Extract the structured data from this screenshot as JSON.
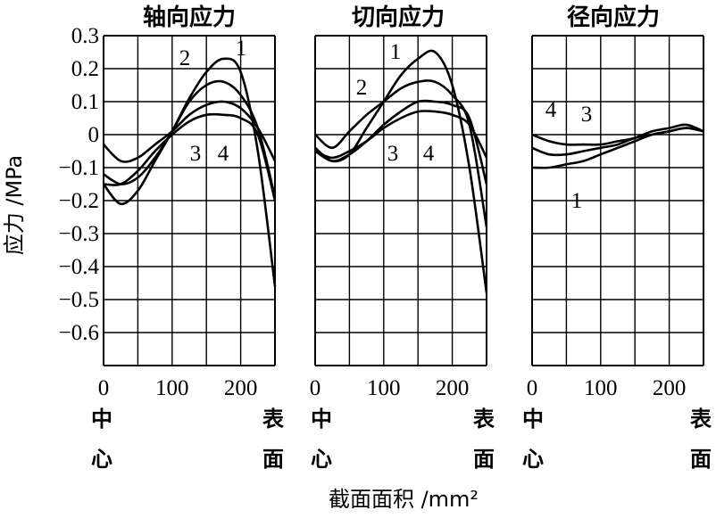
{
  "figure": {
    "y_axis_label": "应力 /MPa",
    "x_axis_label": "截面面积 /mm²",
    "center_label": [
      "中",
      "心"
    ],
    "surface_label": [
      "表",
      "面"
    ]
  },
  "chart_data": [
    {
      "type": "line",
      "title": "轴向应力",
      "xlabel": "截面面积 /mm²",
      "ylabel": "应力 /MPa",
      "xlim": [
        0,
        250
      ],
      "ylim": [
        -0.7,
        0.3
      ],
      "x_ticks": [
        "0",
        "100",
        "200"
      ],
      "y_ticks": [
        "0.3",
        "0.2",
        "0.1",
        "0",
        "−0.1",
        "−0.2",
        "−0.3",
        "−0.4",
        "−0.5",
        "−0.6"
      ],
      "grid": true,
      "series": [
        {
          "name": "1",
          "x": [
            0,
            25,
            50,
            75,
            100,
            125,
            150,
            175,
            200,
            225,
            250
          ],
          "y": [
            -0.15,
            -0.21,
            -0.17,
            -0.08,
            0.01,
            0.11,
            0.19,
            0.23,
            0.19,
            -0.05,
            -0.46
          ]
        },
        {
          "name": "2",
          "x": [
            0,
            25,
            50,
            75,
            100,
            125,
            150,
            175,
            200,
            225,
            250
          ],
          "y": [
            -0.12,
            -0.15,
            -0.13,
            -0.07,
            0.01,
            0.1,
            0.15,
            0.16,
            0.12,
            0.02,
            -0.19
          ]
        },
        {
          "name": "3",
          "x": [
            0,
            25,
            50,
            75,
            100,
            125,
            150,
            175,
            200,
            225,
            250
          ],
          "y": [
            -0.03,
            -0.08,
            -0.07,
            -0.03,
            0.01,
            0.06,
            0.09,
            0.1,
            0.08,
            0.02,
            -0.08
          ]
        },
        {
          "name": "4",
          "x": [
            0,
            25,
            50,
            75,
            100,
            125,
            150,
            175,
            200,
            225,
            250
          ],
          "y": [
            -0.15,
            -0.15,
            -0.11,
            -0.05,
            0.0,
            0.04,
            0.06,
            0.06,
            0.05,
            0.0,
            -0.2
          ]
        }
      ],
      "annotations": [
        "1",
        "2",
        "3",
        "4"
      ]
    },
    {
      "type": "line",
      "title": "切向应力",
      "xlabel": "截面面积 /mm²",
      "ylabel": "应力 /MPa",
      "xlim": [
        0,
        250
      ],
      "ylim": [
        -0.7,
        0.3
      ],
      "x_ticks": [
        "0",
        "100",
        "200"
      ],
      "grid": true,
      "series": [
        {
          "name": "1",
          "x": [
            0,
            25,
            50,
            75,
            100,
            125,
            150,
            175,
            200,
            225,
            250
          ],
          "y": [
            -0.04,
            -0.08,
            -0.06,
            0.02,
            0.1,
            0.18,
            0.23,
            0.25,
            0.15,
            -0.1,
            -0.48
          ]
        },
        {
          "name": "2",
          "x": [
            0,
            25,
            50,
            75,
            100,
            125,
            150,
            175,
            200,
            225,
            250
          ],
          "y": [
            0.0,
            -0.04,
            0.01,
            0.06,
            0.1,
            0.14,
            0.16,
            0.16,
            0.12,
            0.03,
            -0.28
          ]
        },
        {
          "name": "3",
          "x": [
            0,
            25,
            50,
            75,
            100,
            125,
            150,
            175,
            200,
            225,
            250
          ],
          "y": [
            -0.05,
            -0.08,
            -0.06,
            -0.02,
            0.03,
            0.07,
            0.1,
            0.1,
            0.09,
            0.05,
            -0.15
          ]
        },
        {
          "name": "4",
          "x": [
            0,
            25,
            50,
            75,
            100,
            125,
            150,
            175,
            200,
            225,
            250
          ],
          "y": [
            -0.05,
            -0.07,
            -0.05,
            -0.02,
            0.02,
            0.05,
            0.07,
            0.07,
            0.06,
            0.03,
            -0.07
          ]
        }
      ],
      "annotations": [
        "1",
        "2",
        "3",
        "4"
      ]
    },
    {
      "type": "line",
      "title": "径向应力",
      "xlabel": "截面面积 /mm²",
      "ylabel": "应力 /MPa",
      "xlim": [
        0,
        250
      ],
      "ylim": [
        -0.7,
        0.3
      ],
      "x_ticks": [
        "0",
        "100",
        "200"
      ],
      "grid": true,
      "series": [
        {
          "name": "1",
          "x": [
            0,
            25,
            50,
            75,
            100,
            125,
            150,
            175,
            200,
            225,
            250
          ],
          "y": [
            -0.1,
            -0.1,
            -0.09,
            -0.08,
            -0.06,
            -0.04,
            -0.02,
            0.0,
            0.01,
            0.02,
            0.01
          ]
        },
        {
          "name": "3",
          "x": [
            0,
            25,
            50,
            75,
            100,
            125,
            150,
            175,
            200,
            225,
            250
          ],
          "y": [
            -0.04,
            -0.06,
            -0.06,
            -0.05,
            -0.04,
            -0.03,
            -0.01,
            0.0,
            0.01,
            0.02,
            0.01
          ]
        },
        {
          "name": "4",
          "x": [
            0,
            25,
            50,
            75,
            100,
            125,
            150,
            175,
            200,
            225,
            250
          ],
          "y": [
            0.0,
            -0.02,
            -0.03,
            -0.03,
            -0.03,
            -0.02,
            -0.01,
            0.01,
            0.02,
            0.03,
            0.01
          ]
        }
      ],
      "annotations": [
        "4",
        "3",
        "1"
      ]
    }
  ]
}
